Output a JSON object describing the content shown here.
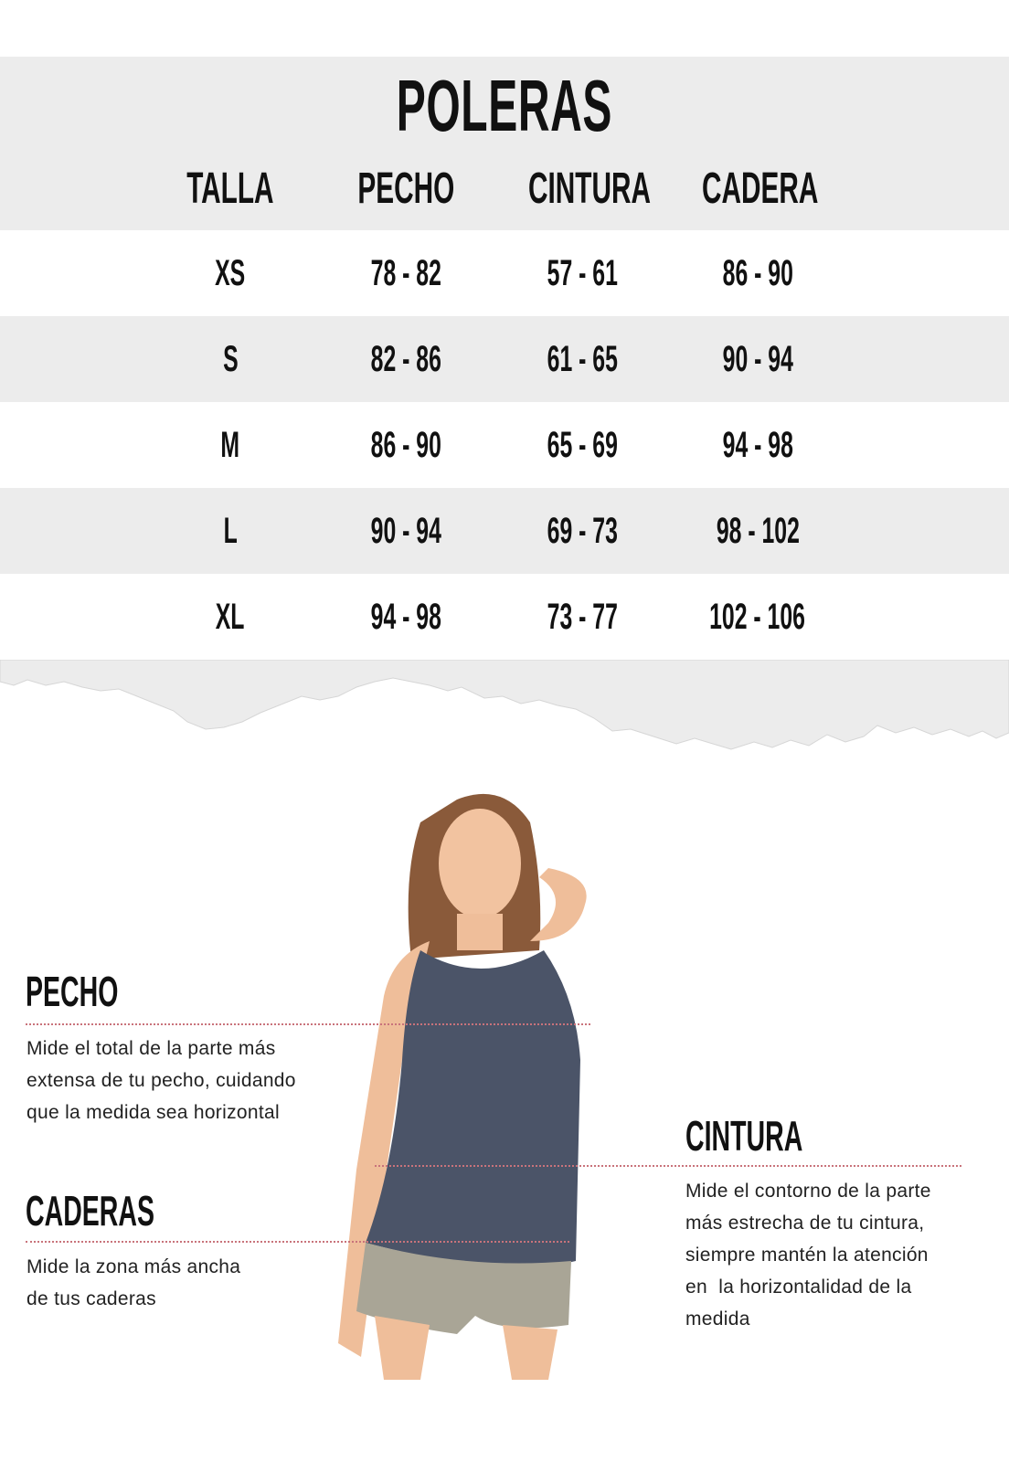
{
  "title": "POLERAS",
  "table": {
    "headers": [
      "TALLA",
      "PECHO",
      "CINTURA",
      "CADERA"
    ],
    "rows": [
      [
        "XS",
        "78 - 82",
        "57 - 61",
        "86 - 90"
      ],
      [
        "S",
        "82 - 86",
        "61 - 65",
        "90 - 94"
      ],
      [
        "M",
        "86 - 90",
        "65 - 69",
        "94 - 98"
      ],
      [
        "L",
        "90 - 94",
        "69 - 73",
        "98 - 102"
      ],
      [
        "XL",
        "94 - 98",
        "73 - 77",
        "102 - 106"
      ]
    ]
  },
  "guide": {
    "pecho": {
      "title": "PECHO",
      "lines": [
        "Mide el total de la parte más",
        "extensa de tu pecho, cuidando",
        "que la medida sea horizontal"
      ]
    },
    "caderas": {
      "title": "CADERAS",
      "lines": [
        "Mide la zona más ancha",
        "de tus caderas"
      ]
    },
    "cintura": {
      "title": "CINTURA",
      "lines": [
        "Mide el contorno de la parte",
        "más estrecha de tu cintura,",
        "siempre mantén la atención",
        "en  la horizontalidad de la",
        "medida"
      ]
    }
  },
  "colors": {
    "band": "#ececec",
    "dotted_line": "#c9737b",
    "tank_top": "#4b5468"
  }
}
